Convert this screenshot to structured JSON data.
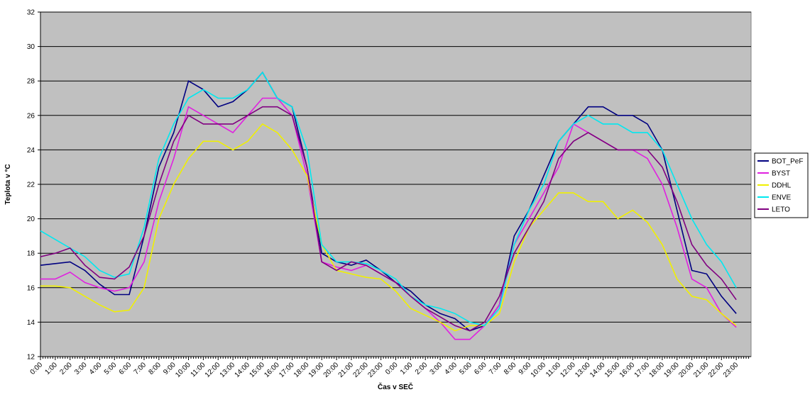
{
  "chart_data": {
    "type": "line",
    "y_label": "Teplota v °C",
    "x_label": "Čas v SEČ",
    "categories": [
      "0:00",
      "1:00",
      "2:00",
      "3:00",
      "4:00",
      "5:00",
      "6:00",
      "7:00",
      "8:00",
      "9:00",
      "10:00",
      "11:00",
      "12:00",
      "13:00",
      "14:00",
      "15:00",
      "16:00",
      "17:00",
      "18:00",
      "19:00",
      "20:00",
      "21:00",
      "22:00",
      "23:00",
      "0:00",
      "1:00",
      "2:00",
      "3:00",
      "4:00",
      "5:00",
      "6:00",
      "7:00",
      "8:00",
      "9:00",
      "10:00",
      "11:00",
      "12:00",
      "13:00",
      "14:00",
      "15:00",
      "16:00",
      "17:00",
      "18:00",
      "19:00",
      "20:00",
      "21:00",
      "22:00",
      "23:00"
    ],
    "ylim": [
      12,
      32
    ],
    "yticks": [
      12,
      14,
      16,
      18,
      20,
      22,
      24,
      26,
      28,
      30,
      32
    ],
    "grid": true,
    "legend": "right",
    "series": [
      {
        "name": "BOT_PeF",
        "color": "#000080",
        "values": [
          17.3,
          17.4,
          17.5,
          17.0,
          16.2,
          15.6,
          15.6,
          19.0,
          23.0,
          25.0,
          28.0,
          27.5,
          26.5,
          26.8,
          27.5,
          28.5,
          27.0,
          26.5,
          23.0,
          18.0,
          17.5,
          17.3,
          17.6,
          17.0,
          16.3,
          15.8,
          15.0,
          14.5,
          14.2,
          13.5,
          13.8,
          15.0,
          19.0,
          20.5,
          22.5,
          24.5,
          25.5,
          26.5,
          26.5,
          26.0,
          26.0,
          25.5,
          24.0,
          20.5,
          17.0,
          16.8,
          15.5,
          14.5
        ]
      },
      {
        "name": "BYST",
        "color": "#e020e0",
        "values": [
          16.5,
          16.5,
          16.9,
          16.3,
          16.0,
          15.8,
          16.0,
          17.5,
          21.0,
          23.5,
          26.5,
          26.0,
          25.5,
          25.0,
          26.0,
          27.0,
          27.0,
          26.0,
          22.5,
          17.5,
          17.2,
          17.0,
          17.3,
          16.8,
          16.3,
          15.5,
          14.8,
          14.0,
          13.0,
          13.0,
          13.8,
          15.0,
          18.5,
          20.0,
          21.5,
          23.0,
          25.5,
          25.0,
          24.5,
          24.0,
          24.0,
          23.5,
          22.0,
          19.5,
          16.5,
          16.0,
          14.5,
          13.7
        ]
      },
      {
        "name": "DDHL",
        "color": "#f0f000",
        "values": [
          16.1,
          16.1,
          16.0,
          15.5,
          15.0,
          14.6,
          14.7,
          16.0,
          20.0,
          22.0,
          23.5,
          24.5,
          24.5,
          24.0,
          24.5,
          25.5,
          25.0,
          24.0,
          22.5,
          18.5,
          17.0,
          16.8,
          16.6,
          16.5,
          15.8,
          14.8,
          14.4,
          14.0,
          13.5,
          13.8,
          13.8,
          14.5,
          17.5,
          19.5,
          20.5,
          21.5,
          21.5,
          21.0,
          21.0,
          20.0,
          20.5,
          19.8,
          18.5,
          16.5,
          15.5,
          15.3,
          14.5,
          13.8
        ]
      },
      {
        "name": "ENVE",
        "color": "#00e8f0",
        "values": [
          19.3,
          18.8,
          18.3,
          17.8,
          17.0,
          16.6,
          16.8,
          19.5,
          23.5,
          25.5,
          27.0,
          27.5,
          27.0,
          27.0,
          27.5,
          28.5,
          27.0,
          26.5,
          24.0,
          18.5,
          17.5,
          17.5,
          17.4,
          17.0,
          16.5,
          15.5,
          15.0,
          14.8,
          14.5,
          14.0,
          13.8,
          14.8,
          18.5,
          20.5,
          22.0,
          24.5,
          25.5,
          26.0,
          25.5,
          25.5,
          25.0,
          25.0,
          24.0,
          22.0,
          20.0,
          18.5,
          17.5,
          16.0
        ]
      },
      {
        "name": "LETO",
        "color": "#800080",
        "values": [
          17.8,
          18.0,
          18.3,
          17.3,
          16.6,
          16.5,
          17.2,
          19.0,
          22.0,
          24.5,
          26.0,
          25.5,
          25.5,
          25.5,
          26.0,
          26.5,
          26.5,
          26.0,
          23.0,
          17.5,
          17.0,
          17.5,
          17.3,
          16.8,
          16.3,
          15.5,
          14.8,
          14.3,
          13.8,
          13.5,
          14.0,
          15.5,
          18.0,
          19.5,
          21.0,
          23.5,
          24.5,
          25.0,
          24.5,
          24.0,
          24.0,
          24.0,
          23.0,
          21.0,
          18.5,
          17.3,
          16.5,
          15.3
        ]
      }
    ]
  }
}
